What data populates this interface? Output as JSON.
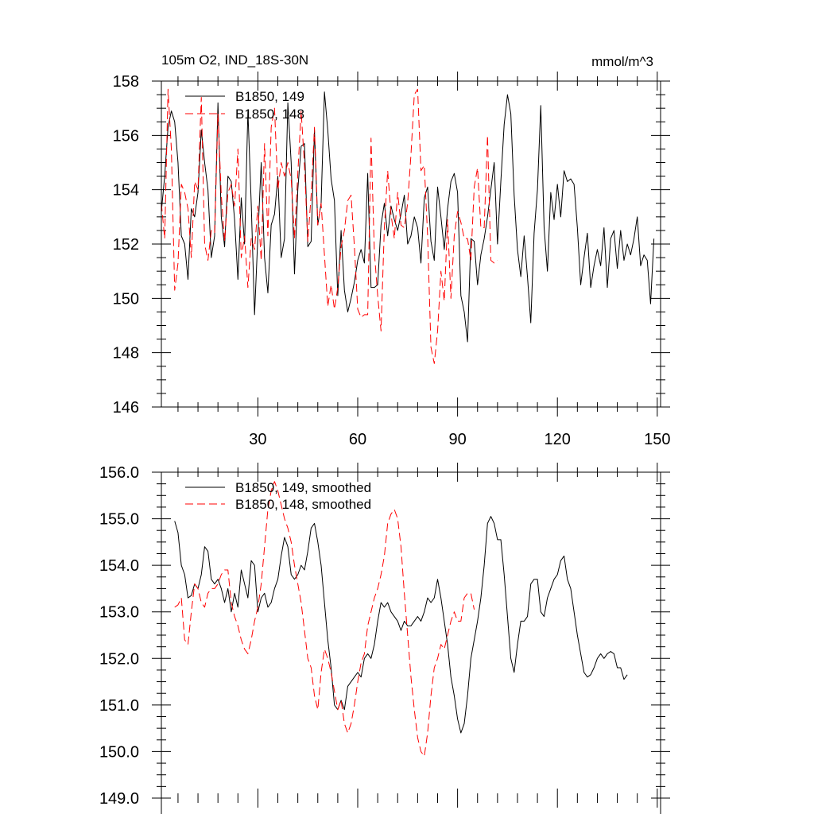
{
  "chart_data": [
    {
      "type": "line",
      "title": "105m O2, IND_18S-30N",
      "units": "mmol/m^3",
      "xlabel": "",
      "ylabel": "",
      "xlim": [
        1,
        151
      ],
      "ylim": [
        146,
        158
      ],
      "xticks": [
        30,
        60,
        90,
        120,
        150
      ],
      "yticks": [
        146,
        148,
        150,
        152,
        154,
        156,
        158
      ],
      "ytick_labels": [
        "146",
        "148",
        "150",
        "152",
        "154",
        "156",
        "158"
      ],
      "legend_position": "top-left",
      "series": [
        {
          "name": "B1850, 149",
          "color": "#000000",
          "dash": "solid",
          "x_start": 1,
          "values": [
            153.2,
            154.5,
            156.3,
            156.9,
            156.5,
            155.0,
            152.3,
            152.0,
            150.7,
            153.3,
            153.0,
            153.9,
            156.2,
            155.0,
            154.0,
            151.5,
            152.3,
            157.2,
            153.0,
            151.9,
            154.5,
            154.3,
            152.9,
            150.7,
            153.7,
            152.0,
            156.9,
            153.5,
            149.4,
            152.3,
            155.0,
            151.5,
            150.2,
            152.7,
            153.1,
            154.5,
            151.5,
            152.2,
            157.2,
            155.0,
            150.9,
            154.0,
            155.6,
            155.7,
            151.9,
            152.1,
            156.2,
            152.7,
            153.5,
            157.6,
            156.2,
            154.4,
            153.6,
            150.1,
            152.5,
            150.3,
            149.5,
            150.0,
            150.6,
            151.4,
            151.8,
            151.3,
            154.6,
            150.4,
            150.4,
            150.5,
            152.7,
            153.5,
            152.3,
            153.4,
            152.9,
            152.5,
            153.1,
            153.8,
            152.0,
            152.3,
            153.0,
            152.6,
            151.3,
            153.7,
            154.1,
            152.1,
            151.4,
            154.1,
            153.0,
            151.8,
            153.3,
            154.3,
            154.6,
            153.9,
            150.1,
            149.5,
            148.4,
            152.2,
            152.1,
            150.5,
            151.6,
            152.2,
            153.0,
            154.0,
            155.0,
            152.0,
            154.3,
            156.4,
            157.5,
            156.8,
            153.8,
            151.8,
            150.8,
            152.3,
            150.8,
            149.1,
            152.4,
            154.0,
            157.1,
            152.6,
            151.0,
            153.9,
            152.9,
            154.2,
            153.0,
            154.7,
            154.3,
            154.4,
            154.2,
            152.6,
            150.5,
            151.5,
            152.4,
            150.4,
            151.2,
            151.8,
            151.2,
            152.6,
            150.4,
            152.2,
            152.5,
            151.1,
            152.5,
            151.4,
            152.0,
            151.6,
            152.2,
            153.0,
            151.2,
            151.6,
            151.4,
            149.8,
            152.2
          ]
        },
        {
          "name": "B1850, 148",
          "color": "#ff0000",
          "dash": "dashed",
          "x_start": 1,
          "values": [
            153.5,
            152.2,
            157.7,
            155.5,
            150.3,
            151.3,
            154.2,
            153.9,
            153.3,
            151.5,
            154.3,
            154.0,
            157.4,
            152.0,
            151.4,
            152.5,
            152.4,
            156.8,
            153.8,
            152.1,
            153.9,
            154.2,
            153.4,
            155.5,
            151.5,
            152.3,
            150.4,
            152.2,
            151.8,
            153.4,
            151.4,
            155.7,
            152.3,
            156.3,
            157.0,
            154.0,
            155.0,
            154.5,
            155.0,
            154.4,
            152.2,
            154.6,
            156.9,
            154.9,
            152.1,
            153.8,
            156.3,
            152.7,
            153.5,
            151.6,
            149.7,
            150.5,
            149.6,
            150.4,
            151.9,
            152.5,
            153.6,
            153.8,
            151.9,
            149.6,
            149.3,
            149.4,
            149.4,
            155.9,
            151.7,
            150.1,
            148.8,
            152.6,
            154.7,
            153.1,
            152.2,
            153.9,
            152.7,
            152.6,
            153.5,
            155.3,
            157.5,
            157.7,
            154.7,
            154.9,
            152.3,
            148.2,
            147.6,
            148.8,
            151.0,
            149.9,
            152.9,
            150.0,
            152.3,
            153.2,
            152.8,
            152.2,
            152.2,
            151.4,
            154.1,
            154.8,
            152.6,
            152.6,
            156.0,
            151.4,
            151.3,
            151.4
          ]
        }
      ]
    },
    {
      "type": "line",
      "title": "",
      "xlabel": "",
      "ylabel": "",
      "xlim": [
        1,
        151
      ],
      "ylim": [
        149,
        156
      ],
      "xticks": [
        30,
        60,
        90,
        120,
        150
      ],
      "yticks": [
        149,
        150,
        151,
        152,
        153,
        154,
        155,
        156
      ],
      "ytick_labels": [
        "149.0",
        "150.0",
        "151.0",
        "152.0",
        "153.0",
        "154.0",
        "155.0",
        "156.0"
      ],
      "legend_position": "top-left",
      "series": [
        {
          "name": "B1850, 149, smoothed",
          "color": "#000000",
          "dash": "solid",
          "x_start": 5,
          "values": [
            154.95,
            154.7,
            154.0,
            153.8,
            153.3,
            153.35,
            153.6,
            153.5,
            153.8,
            154.4,
            154.3,
            153.7,
            153.6,
            153.7,
            153.5,
            153.2,
            153.5,
            153.0,
            153.4,
            153.1,
            153.9,
            153.6,
            153.3,
            154.1,
            154.0,
            153.0,
            153.3,
            153.4,
            153.1,
            153.2,
            153.5,
            153.7,
            154.2,
            154.6,
            154.4,
            153.8,
            153.7,
            153.8,
            154.0,
            153.9,
            154.3,
            154.8,
            154.9,
            154.5,
            154.0,
            153.2,
            152.4,
            151.8,
            151.0,
            150.9,
            151.1,
            150.9,
            151.4,
            151.5,
            151.6,
            151.7,
            151.6,
            152.0,
            152.1,
            152.0,
            152.3,
            152.8,
            153.2,
            153.1,
            153.2,
            153.0,
            152.9,
            152.8,
            152.6,
            152.8,
            152.7,
            152.7,
            152.8,
            152.9,
            152.8,
            153.0,
            153.3,
            153.2,
            153.3,
            153.7,
            153.3,
            152.8,
            152.3,
            151.6,
            151.2,
            150.7,
            150.4,
            150.6,
            151.2,
            152.0,
            152.4,
            152.8,
            153.3,
            154.0,
            154.9,
            155.05,
            154.9,
            154.55,
            154.55,
            153.8,
            152.9,
            152.0,
            151.7,
            152.3,
            152.8,
            152.8,
            152.9,
            153.6,
            153.7,
            153.7,
            153.0,
            152.9,
            153.3,
            153.5,
            153.7,
            153.8,
            154.1,
            154.2,
            153.7,
            153.5,
            153.0,
            152.5,
            152.1,
            151.7,
            151.6,
            151.65,
            151.8,
            152.0,
            152.1,
            152.0,
            152.1,
            152.15,
            152.1,
            151.8,
            151.8,
            151.55,
            151.65
          ]
        },
        {
          "name": "B1850, 148, smoothed",
          "color": "#ff0000",
          "dash": "dashed",
          "x_start": 5,
          "values": [
            153.1,
            153.15,
            153.3,
            152.4,
            152.3,
            153.0,
            153.6,
            153.5,
            153.2,
            153.1,
            153.4,
            153.5,
            153.5,
            153.6,
            153.8,
            153.9,
            153.9,
            153.2,
            152.9,
            152.7,
            152.4,
            152.2,
            152.1,
            152.4,
            152.8,
            153.1,
            153.6,
            154.4,
            155.2,
            155.6,
            155.8,
            155.6,
            155.3,
            155.0,
            154.8,
            154.5,
            154.0,
            153.6,
            153.2,
            152.6,
            152.0,
            151.8,
            151.2,
            150.9,
            151.7,
            152.2,
            152.0,
            151.7,
            151.3,
            150.9,
            151.1,
            150.6,
            150.4,
            150.6,
            151.0,
            151.5,
            151.9,
            152.1,
            152.7,
            153.0,
            153.3,
            153.5,
            153.8,
            154.2,
            154.9,
            155.1,
            155.2,
            155.0,
            154.4,
            153.4,
            152.5,
            151.6,
            150.9,
            150.3,
            150.0,
            149.9,
            150.4,
            151.2,
            151.8,
            152.0,
            152.3,
            152.2,
            152.5,
            152.8,
            153.0,
            152.8,
            152.8,
            153.3,
            153.4,
            153.4,
            153.05
          ]
        }
      ]
    }
  ]
}
